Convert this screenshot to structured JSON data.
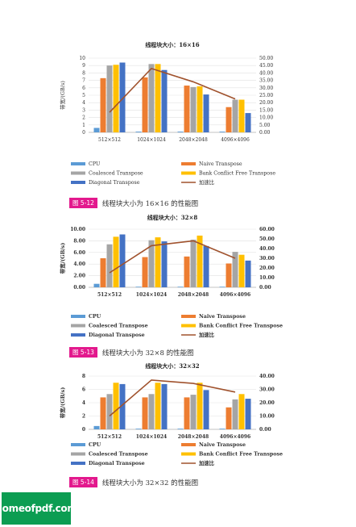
{
  "figures": [
    {
      "id": "fig1",
      "caption": {
        "label": "图 5-12",
        "text": "线程块大小为 16×16 的性能图"
      },
      "chart_data": {
        "type": "bar",
        "title": "线程块大小：16×16",
        "ylabel": "带宽/(GB/s)",
        "categories": [
          "512×512",
          "1024×1024",
          "2048×2048",
          "4096×4096"
        ],
        "ylim": [
          0,
          10
        ],
        "yticks": [
          "0",
          "1",
          "2",
          "3",
          "4",
          "5",
          "6",
          "7",
          "8",
          "9",
          "10"
        ],
        "y2lim": [
          0,
          50
        ],
        "y2ticks": [
          "0.00",
          "5.00",
          "10.00",
          "15.00",
          "20.00",
          "25.00",
          "30.00",
          "35.00",
          "40.00",
          "45.00",
          "50.00"
        ],
        "series": [
          {
            "name": "CPU",
            "color": "#5b9bd5",
            "values": [
              0.6,
              0.1,
              0.1,
              0.1
            ]
          },
          {
            "name": "Naive Transpose",
            "color": "#ed7d31",
            "values": [
              7.3,
              7.4,
              6.3,
              3.4
            ]
          },
          {
            "name": "Coalesced Transpose",
            "color": "#a5a5a5",
            "values": [
              9.0,
              9.2,
              6.1,
              4.4
            ]
          },
          {
            "name": "Bank Conflict Free Transpose",
            "color": "#ffc000",
            "values": [
              9.1,
              9.2,
              6.2,
              4.4
            ]
          },
          {
            "name": "Diagonal Transpose",
            "color": "#4472c4",
            "values": [
              9.4,
              8.4,
              5.1,
              2.6
            ]
          }
        ],
        "line": {
          "name": "加速比",
          "color": "#a0522d",
          "values": [
            13.5,
            43.0,
            34.0,
            22.5
          ]
        }
      }
    },
    {
      "id": "fig2",
      "caption": {
        "label": "图 5-13",
        "text": "线程块大小为 32×8 的性能图"
      },
      "chart_data": {
        "type": "bar",
        "title": "线程块大小：32×8",
        "ylabel": "带宽/(GB/s)",
        "categories": [
          "512×512",
          "1024×1024",
          "2048×2048",
          "4096×4096"
        ],
        "ylim": [
          0,
          10
        ],
        "yticks": [
          "0.00",
          "2.00",
          "4.00",
          "6.00",
          "8.00",
          "10.00"
        ],
        "y2lim": [
          0,
          60
        ],
        "y2ticks": [
          "0.00",
          "10.00",
          "20.00",
          "30.00",
          "40.00",
          "50.00",
          "60.00"
        ],
        "series": [
          {
            "name": "CPU",
            "color": "#5b9bd5",
            "values": [
              0.6,
              0.1,
              0.1,
              0.1
            ]
          },
          {
            "name": "Naive Transpose",
            "color": "#ed7d31",
            "values": [
              5.0,
              5.2,
              5.3,
              4.1
            ]
          },
          {
            "name": "Coalesced Transpose",
            "color": "#a5a5a5",
            "values": [
              7.4,
              8.1,
              8.2,
              6.1
            ]
          },
          {
            "name": "Bank Conflict Free Transpose",
            "color": "#ffc000",
            "values": [
              8.7,
              8.6,
              8.9,
              5.6
            ]
          },
          {
            "name": "Diagonal Transpose",
            "color": "#4472c4",
            "values": [
              9.1,
              7.9,
              7.1,
              4.6
            ]
          }
        ],
        "line": {
          "name": "加速比",
          "color": "#a0522d",
          "values": [
            15.0,
            43.0,
            48.0,
            30.0
          ]
        }
      }
    },
    {
      "id": "fig3",
      "caption": {
        "label": "图 5-14",
        "text": "线程块大小为 32×32 的性能图"
      },
      "chart_data": {
        "type": "bar",
        "title": "线程块大小：32×32",
        "ylabel": "带宽/(GB/s)",
        "categories": [
          "512×512",
          "1024×1024",
          "2048×2048",
          "4096×4096"
        ],
        "ylim": [
          0,
          8
        ],
        "yticks": [
          "0",
          "2",
          "4",
          "6",
          "8"
        ],
        "y2lim": [
          0,
          40
        ],
        "y2ticks": [
          "0.00",
          "10.00",
          "20.00",
          "30.00",
          "40.00"
        ],
        "series": [
          {
            "name": "CPU",
            "color": "#5b9bd5",
            "values": [
              0.5,
              0.1,
              0.1,
              0.1
            ]
          },
          {
            "name": "Naive Transpose",
            "color": "#ed7d31",
            "values": [
              4.8,
              4.8,
              4.8,
              3.3
            ]
          },
          {
            "name": "Coalesced Transpose",
            "color": "#a5a5a5",
            "values": [
              5.3,
              5.3,
              5.2,
              4.5
            ]
          },
          {
            "name": "Bank Conflict Free Transpose",
            "color": "#ffc000",
            "values": [
              7.0,
              7.0,
              7.0,
              5.3
            ]
          },
          {
            "name": "Diagonal Transpose",
            "color": "#4472c4",
            "values": [
              6.8,
              6.8,
              5.9,
              4.6
            ]
          }
        ],
        "line": {
          "name": "加速比",
          "color": "#a0522d",
          "values": [
            10.0,
            37.0,
            34.5,
            28.0
          ]
        }
      }
    }
  ],
  "watermark": "homeofpdf.com"
}
